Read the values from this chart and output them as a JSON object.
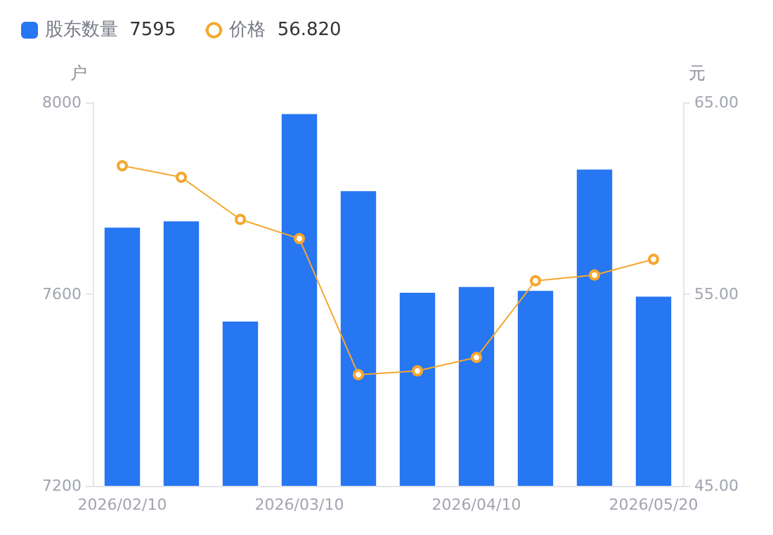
{
  "chart_data": {
    "type": "bar",
    "ylabel": "户",
    "y2label": "元",
    "categories": [
      "2026/02/10",
      null,
      null,
      "2026/03/10",
      null,
      null,
      "2026/04/10",
      null,
      null,
      "2026/05/20"
    ],
    "series": [
      {
        "name": "股东数量",
        "color": "#2776f2",
        "values": [
          7739,
          7752,
          7543,
          7976,
          7815,
          7603,
          7615,
          7607,
          7860,
          7595
        ]
      },
      {
        "name": "价格",
        "type": "line",
        "axis": "y2",
        "color": "#f5a72f",
        "marker": "circle",
        "values": [
          61.7,
          61.1,
          58.9,
          57.9,
          50.8,
          51.0,
          51.7,
          55.7,
          56.0,
          56.82
        ]
      }
    ],
    "annotations": [
      "7595",
      "56.820"
    ],
    "ylim": [
      7200,
      8000
    ],
    "yticks": [
      7200,
      7600,
      8000
    ],
    "y2lim": [
      45,
      65
    ],
    "y2ticks": [
      {
        "value": 45,
        "label": "45.00"
      },
      {
        "value": 55,
        "label": "55.00"
      },
      {
        "value": 65,
        "label": "65.00"
      }
    ],
    "grid": false,
    "legend": "top left"
  }
}
